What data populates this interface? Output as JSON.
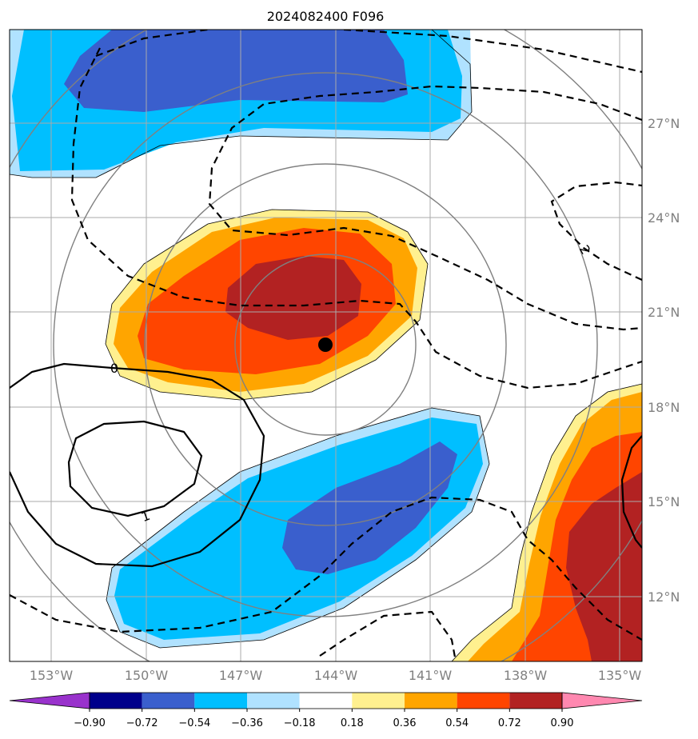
{
  "title": "2024082400 F096",
  "lon_labels": [
    "153°W",
    "150°W",
    "147°W",
    "144°W",
    "141°W",
    "138°W",
    "135°W"
  ],
  "lat_labels": [
    "27°N",
    "24°N",
    "21°N",
    "18°N",
    "15°N",
    "12°N"
  ],
  "colorbar": {
    "ticks": [
      "−0.90",
      "−0.72",
      "−0.54",
      "−0.36",
      "−0.18",
      "0.18",
      "0.36",
      "0.54",
      "0.72",
      "0.90"
    ],
    "colors": [
      "#9932cc",
      "#00008b",
      "#3a5fcd",
      "#00bfff",
      "#b0e2ff",
      "#ffffff",
      "#fff08f",
      "#ffa500",
      "#ff4500",
      "#b22222",
      "#ff88b0"
    ]
  },
  "contour_labels": [
    "0",
    "1",
    "2"
  ],
  "colors": {
    "dark_blue": "#3a5fcd",
    "mid_blue": "#00bfff",
    "light_blue": "#b0e2ff",
    "light_yellow": "#fff08f",
    "orange": "#ffa500",
    "red_orange": "#ff4500",
    "dark_red": "#b22222",
    "range_rings": "#808080",
    "gridlines": "#aaaaaa"
  },
  "center_marker": "storm-center-dot"
}
